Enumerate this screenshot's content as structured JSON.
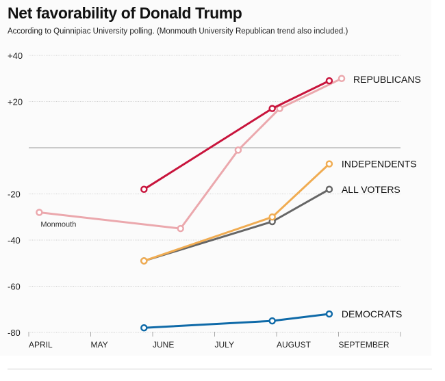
{
  "chart_data": {
    "type": "line",
    "title": "Net favorability of Donald Trump",
    "subtitle": "According to Quinnipiac University polling. (Monmouth University Republican trend also included.)",
    "xlabel": "",
    "ylabel": "",
    "x_unit": "months since April 1",
    "xlim": [
      0,
      6
    ],
    "ylim": [
      -80,
      40
    ],
    "grid": true,
    "y_ticks": [
      {
        "value": 40,
        "label": "+40"
      },
      {
        "value": 20,
        "label": "+20"
      },
      {
        "value": 0,
        "label": ""
      },
      {
        "value": -20,
        "label": "-20"
      },
      {
        "value": -40,
        "label": "-40"
      },
      {
        "value": -60,
        "label": "-60"
      },
      {
        "value": -80,
        "label": "-80"
      }
    ],
    "x_ticks": [
      {
        "value": 0,
        "label": "APRIL"
      },
      {
        "value": 1,
        "label": "MAY"
      },
      {
        "value": 2,
        "label": "JUNE"
      },
      {
        "value": 3,
        "label": "JULY"
      },
      {
        "value": 4,
        "label": "AUGUST"
      },
      {
        "value": 5,
        "label": "SEPTEMBER"
      },
      {
        "value": 6,
        "label": ""
      }
    ],
    "series": [
      {
        "name": "Monmouth Republicans",
        "label": "",
        "annotation": "Monmouth",
        "color": "#eba8ad",
        "points": [
          {
            "x": 0.17,
            "y": -28
          },
          {
            "x": 2.45,
            "y": -35
          },
          {
            "x": 3.38,
            "y": -1
          },
          {
            "x": 4.05,
            "y": 17
          },
          {
            "x": 5.05,
            "y": 30
          }
        ]
      },
      {
        "name": "Republicans",
        "label": "REPUBLICANS",
        "color": "#c8143c",
        "points": [
          {
            "x": 1.86,
            "y": -18
          },
          {
            "x": 3.93,
            "y": 17
          },
          {
            "x": 4.85,
            "y": 29
          }
        ]
      },
      {
        "name": "All voters",
        "label": "ALL VOTERS",
        "color": "#666666",
        "points": [
          {
            "x": 1.86,
            "y": -49
          },
          {
            "x": 3.93,
            "y": -32
          },
          {
            "x": 4.85,
            "y": -18
          }
        ]
      },
      {
        "name": "Independents",
        "label": "INDEPENDENTS",
        "color": "#f0ac52",
        "points": [
          {
            "x": 1.86,
            "y": -49
          },
          {
            "x": 3.93,
            "y": -30
          },
          {
            "x": 4.85,
            "y": -7
          }
        ]
      },
      {
        "name": "Democrats",
        "label": "DEMOCRATS",
        "color": "#0f6aa8",
        "points": [
          {
            "x": 1.86,
            "y": -78
          },
          {
            "x": 3.93,
            "y": -75
          },
          {
            "x": 4.85,
            "y": -72
          }
        ]
      }
    ]
  }
}
